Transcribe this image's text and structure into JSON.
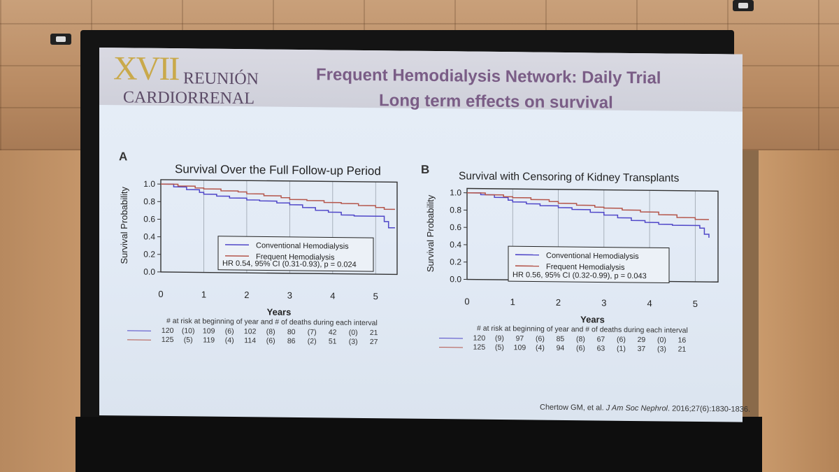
{
  "slide": {
    "logo_number": "XVII",
    "logo_line1": "REUNIÓN",
    "logo_line2": "CARDIORRENAL",
    "title_line1": "Frequent Hemodialysis Network: Daily Trial",
    "title_line2": "Long term effects on survival",
    "citation_authors": "Chertow GM, et al. ",
    "citation_journal": "J Am Soc Nephrol",
    "citation_rest": ". 2016;27(6):1830-1836."
  },
  "colors": {
    "conventional": "#4f46c8",
    "frequent": "#b4554a",
    "title": "#7a5d86"
  },
  "chart_data": [
    {
      "type": "line",
      "panel_letter": "A",
      "title": "Survival Over the Full Follow-up Period",
      "xlabel": "Years",
      "ylabel": "Survival Probability",
      "xlim": [
        0,
        5.5
      ],
      "ylim": [
        0,
        1.05
      ],
      "x_ticks": [
        "0",
        "1",
        "2",
        "3",
        "4",
        "5"
      ],
      "y_ticks": [
        "0.0",
        "0.2",
        "0.4",
        "0.6",
        "0.8",
        "1.0"
      ],
      "grid": "vertical at each year",
      "legend_placement": "bottom-center",
      "hr_text": "HR 0.54, 95% CI (0.31-0.93), p = 0.024",
      "series": [
        {
          "name": "Conventional Hemodialysis",
          "color": "#4f46c8",
          "x": [
            0,
            0.3,
            0.6,
            0.9,
            1.0,
            1.3,
            1.6,
            2.0,
            2.3,
            2.7,
            3.0,
            3.3,
            3.6,
            3.9,
            4.2,
            4.5,
            4.9,
            5.15,
            5.2,
            5.3,
            5.45
          ],
          "y": [
            1.0,
            0.97,
            0.94,
            0.91,
            0.89,
            0.87,
            0.85,
            0.83,
            0.82,
            0.8,
            0.78,
            0.75,
            0.72,
            0.7,
            0.67,
            0.66,
            0.66,
            0.66,
            0.6,
            0.53,
            0.53
          ]
        },
        {
          "name": "Frequent Hemodialysis",
          "color": "#b4554a",
          "x": [
            0,
            0.4,
            0.8,
            1.0,
            1.4,
            1.8,
            2.0,
            2.4,
            2.8,
            3.0,
            3.4,
            3.8,
            4.2,
            4.6,
            5.0,
            5.2,
            5.45
          ],
          "y": [
            1.0,
            0.98,
            0.96,
            0.95,
            0.93,
            0.92,
            0.9,
            0.88,
            0.86,
            0.84,
            0.83,
            0.81,
            0.8,
            0.78,
            0.76,
            0.74,
            0.74
          ]
        }
      ],
      "risk_header": "# at risk at beginning of year and # of deaths during each interval",
      "risk_rows": [
        {
          "color": "#4f46c8",
          "cells": [
            "120",
            "(10)",
            "109",
            "(6)",
            "102",
            "(8)",
            "80",
            "(7)",
            "42",
            "(0)",
            "21"
          ]
        },
        {
          "color": "#b4554a",
          "cells": [
            "125",
            "(5)",
            "119",
            "(4)",
            "114",
            "(6)",
            "86",
            "(2)",
            "51",
            "(3)",
            "27"
          ]
        }
      ]
    },
    {
      "type": "line",
      "panel_letter": "B",
      "title": "Survival with Censoring of Kidney Transplants",
      "xlabel": "Years",
      "ylabel": "Survival Probability",
      "xlim": [
        0,
        5.5
      ],
      "ylim": [
        0,
        1.05
      ],
      "x_ticks": [
        "0",
        "1",
        "2",
        "3",
        "4",
        "5"
      ],
      "y_ticks": [
        "0.0",
        "0.2",
        "0.4",
        "0.6",
        "0.8",
        "1.0"
      ],
      "grid": "vertical at each year",
      "legend_placement": "bottom-center",
      "hr_text": "HR 0.56, 95% CI (0.32-0.99), p = 0.043",
      "series": [
        {
          "name": "Conventional Hemodialysis",
          "color": "#4f46c8",
          "x": [
            0,
            0.3,
            0.6,
            0.9,
            1.0,
            1.3,
            1.6,
            2.0,
            2.3,
            2.7,
            3.0,
            3.3,
            3.6,
            3.9,
            4.2,
            4.5,
            4.9,
            5.1,
            5.2,
            5.3
          ],
          "y": [
            1.0,
            0.98,
            0.95,
            0.92,
            0.9,
            0.88,
            0.86,
            0.84,
            0.82,
            0.79,
            0.76,
            0.73,
            0.7,
            0.68,
            0.66,
            0.65,
            0.65,
            0.62,
            0.55,
            0.51
          ]
        },
        {
          "name": "Frequent Hemodialysis",
          "color": "#b4554a",
          "x": [
            0,
            0.4,
            0.8,
            1.0,
            1.4,
            1.8,
            2.0,
            2.4,
            2.8,
            3.0,
            3.4,
            3.8,
            4.2,
            4.6,
            5.0,
            5.3
          ],
          "y": [
            1.0,
            0.98,
            0.96,
            0.95,
            0.93,
            0.91,
            0.89,
            0.87,
            0.85,
            0.84,
            0.82,
            0.8,
            0.77,
            0.74,
            0.72,
            0.72
          ]
        }
      ],
      "risk_header": "# at risk at beginning of year and # of deaths during each interval",
      "risk_rows": [
        {
          "color": "#4f46c8",
          "cells": [
            "120",
            "(9)",
            "97",
            "(6)",
            "85",
            "(8)",
            "67",
            "(6)",
            "29",
            "(0)",
            "16"
          ]
        },
        {
          "color": "#b4554a",
          "cells": [
            "125",
            "(5)",
            "109",
            "(4)",
            "94",
            "(6)",
            "63",
            "(1)",
            "37",
            "(3)",
            "21"
          ]
        }
      ]
    }
  ]
}
